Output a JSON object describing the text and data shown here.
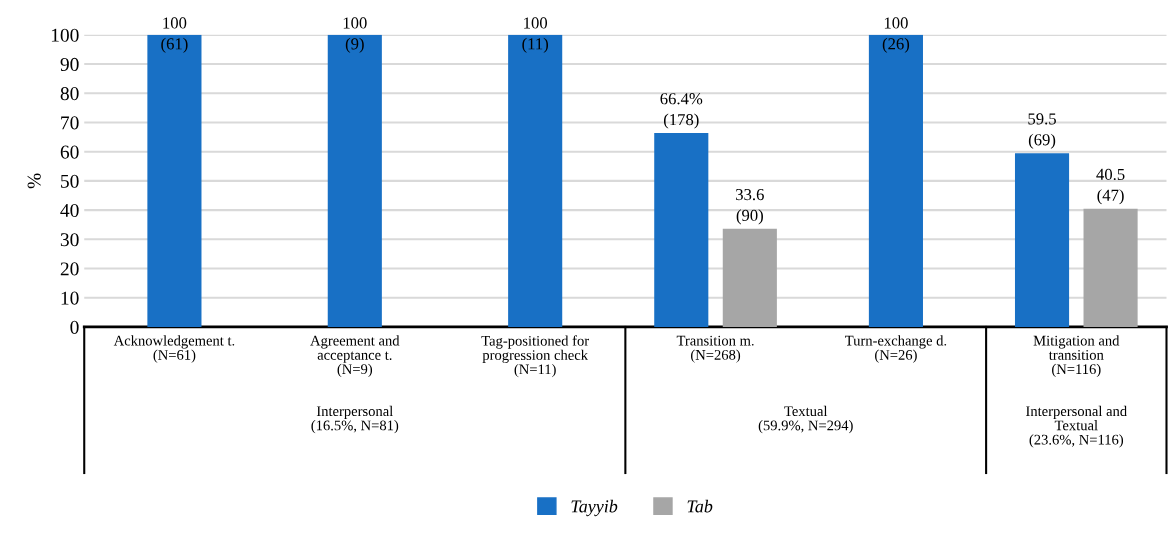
{
  "chart_data": {
    "type": "bar",
    "ylabel": "%",
    "categories": [
      "Acknowledgement t.\n(N=61)",
      "Agreement and\nacceptance t.\n(N=9)",
      "Tag-positioned for\nprogression check\n(N=11)",
      "Transition m.\n(N=268)",
      "Turn-exchange d.\n(N=26)",
      "Mitigation and\ntransition\n(N=116)"
    ],
    "series": [
      {
        "name": "Tayyib",
        "color": "#1870c5",
        "values": [
          100,
          100,
          100,
          66.4,
          100,
          59.5
        ],
        "value_labels": [
          "100\n(61)",
          "100\n(9)",
          "100\n(11)",
          "66.4%\n(178)",
          "100\n(26)",
          "59.5\n(69)"
        ]
      },
      {
        "name": "Tab",
        "color": "#a6a6a6",
        "values": [
          null,
          null,
          null,
          33.6,
          null,
          40.5
        ],
        "value_labels": [
          null,
          null,
          null,
          "33.6\n(90)",
          null,
          "40.5\n(47)"
        ]
      }
    ],
    "annotations": [
      "Interpersonal\n(16.5%, N=81)",
      "Textual\n(59.9%, N=294)",
      "Interpersonal and\nTextual\n(23.6%, N=116)"
    ],
    "ylim": [
      0,
      100
    ],
    "yticks": [
      0,
      10,
      20,
      30,
      40,
      50,
      60,
      70,
      80,
      90,
      100
    ],
    "grid": "y",
    "legend": "bottom"
  }
}
